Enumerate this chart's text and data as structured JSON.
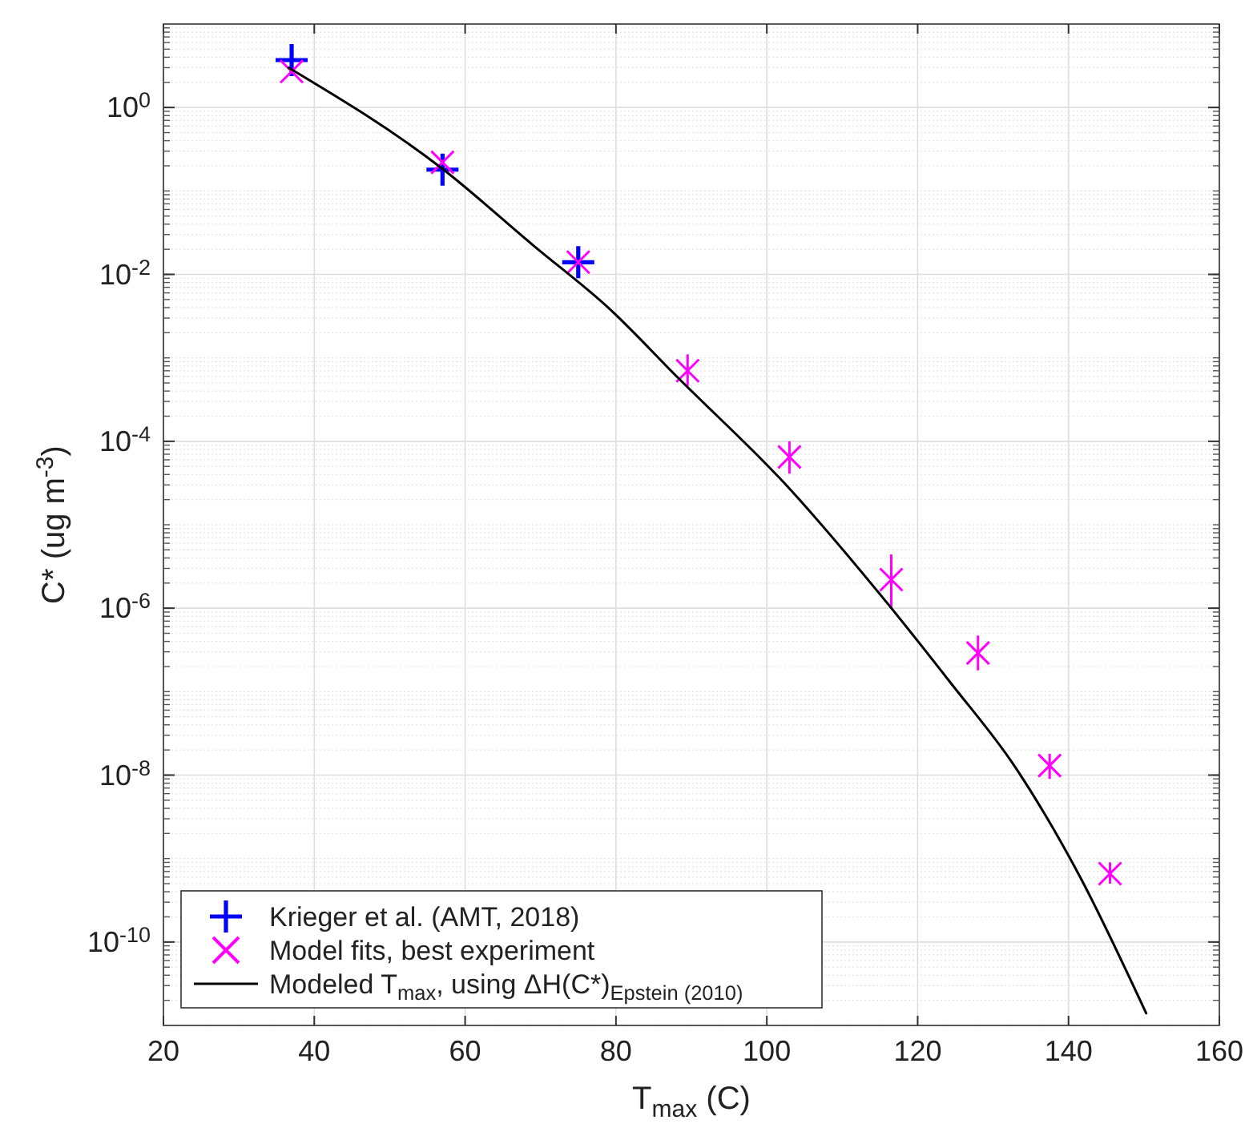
{
  "chart_data": {
    "type": "scatter",
    "xlabel": "T$_{max}$ (C)",
    "ylabel": "C* (ug m$^{-3}$)",
    "xlim": [
      20,
      160
    ],
    "xticks": [
      20,
      40,
      60,
      80,
      100,
      120,
      140,
      160
    ],
    "ylim": [
      1e-11,
      10
    ],
    "yticks": [
      {
        "value": 1e-10,
        "label": "10$^{-10}$"
      },
      {
        "value": 1e-08,
        "label": "10$^{-8}$"
      },
      {
        "value": 1e-06,
        "label": "10$^{-6}$"
      },
      {
        "value": 0.0001,
        "label": "10$^{-4}$"
      },
      {
        "value": 0.01,
        "label": "10$^{-2}$"
      },
      {
        "value": 1,
        "label": "10$^{0}$"
      }
    ],
    "log": "y",
    "grid": true,
    "legend": "bottom left",
    "series": [
      {
        "name": "Krieger et al. (AMT, 2018)",
        "color": "#0000ff",
        "marker": "cross",
        "x": [
          37,
          57,
          75
        ],
        "values": [
          3.7,
          0.18,
          0.014
        ]
      },
      {
        "name": "Model fits, best experiment",
        "color": "#ff00ff",
        "marker": "x",
        "x": [
          37,
          57,
          75,
          89.5,
          103,
          116.5,
          128,
          137.5,
          145.5
        ],
        "values": [
          2.7,
          0.22,
          0.014,
          0.0007,
          6.5e-05,
          2.2e-06,
          2.9e-07,
          1.3e-08,
          6.6e-10
        ],
        "errors": [
          null,
          null,
          null,
          [
            0.00046,
            0.0011
          ],
          [
            4.1e-05,
            0.0001
          ],
          [
            1e-06,
            4.4e-06
          ],
          [
            1.8e-07,
            4.7e-07
          ],
          [
            9e-09,
            1.8e-08
          ],
          [
            5e-10,
            9e-10
          ]
        ]
      },
      {
        "name": "Modeled T$_{max}$, using ΔH(C*)$_{Epstein (2010)}$",
        "type": "line",
        "color": "#000000",
        "marker": "none",
        "line_style": "solid",
        "x": [
          36.6,
          56.8,
          69.1,
          79.1,
          88.2,
          102.4,
          115.8,
          124.3,
          132.8,
          141.3,
          150.3
        ],
        "values": [
          3.0,
          0.19,
          0.022,
          0.0039,
          0.00058,
          3.1e-05,
          1.2e-06,
          1.3e-07,
          1.3e-08,
          6.6e-10,
          1.4e-11
        ]
      }
    ]
  }
}
